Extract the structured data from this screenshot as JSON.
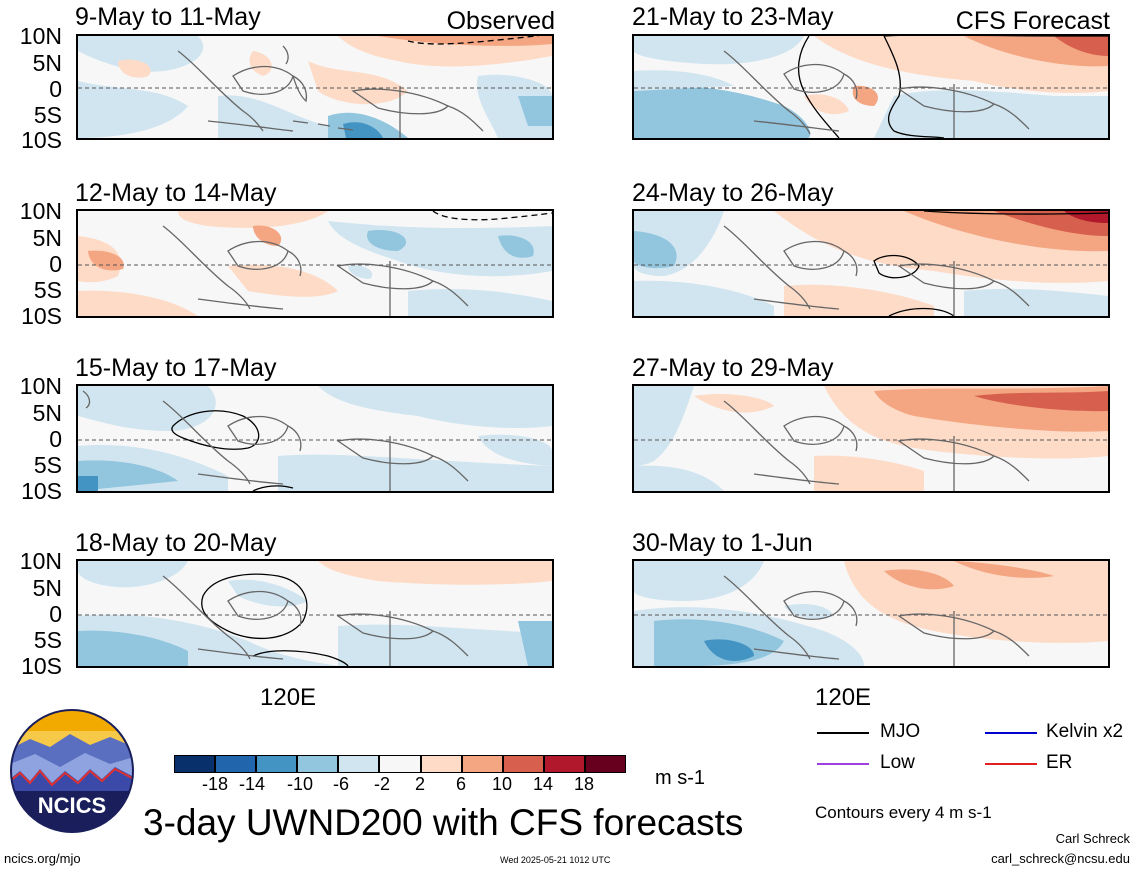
{
  "lat_labels": [
    "10N",
    "5N",
    "0",
    "5S",
    "10S"
  ],
  "lon_label": "120E",
  "observed_label": "Observed",
  "forecast_label": "CFS Forecast",
  "panels": [
    {
      "title": "9-May to 11-May"
    },
    {
      "title": "12-May to 14-May"
    },
    {
      "title": "15-May to 17-May"
    },
    {
      "title": "18-May to 20-May"
    },
    {
      "title": "21-May to 23-May"
    },
    {
      "title": "24-May to 26-May"
    },
    {
      "title": "27-May to 29-May"
    },
    {
      "title": "30-May to 1-Jun"
    }
  ],
  "colorbar": {
    "ticks": [
      "-18",
      "-14",
      "-10",
      "-6",
      "-2",
      "2",
      "6",
      "10",
      "14",
      "18"
    ],
    "colors": [
      "#08306b",
      "#2166ac",
      "#4393c3",
      "#92c5de",
      "#d1e5f0",
      "#f7f7f7",
      "#fddbc7",
      "#f4a582",
      "#d6604d",
      "#b2182b",
      "#67001f"
    ],
    "units": "m s-1"
  },
  "legend": {
    "items": [
      {
        "label": "MJO",
        "color": "#000000"
      },
      {
        "label": "Kelvin x2",
        "color": "#0000cc"
      },
      {
        "label": "Low",
        "color": "#a040e0"
      },
      {
        "label": "ER",
        "color": "#e02020"
      }
    ],
    "contours_note": "Contours every 4 m s-1"
  },
  "logo_text": "NCICS",
  "main_title": "3-day UWND200 with CFS forecasts",
  "footer": {
    "url": "ncics.org/mjo",
    "timestamp": "Wed 2025-05-21 1012 UTC",
    "author": "Carl Schreck",
    "email": "carl_schreck@ncsu.edu"
  }
}
